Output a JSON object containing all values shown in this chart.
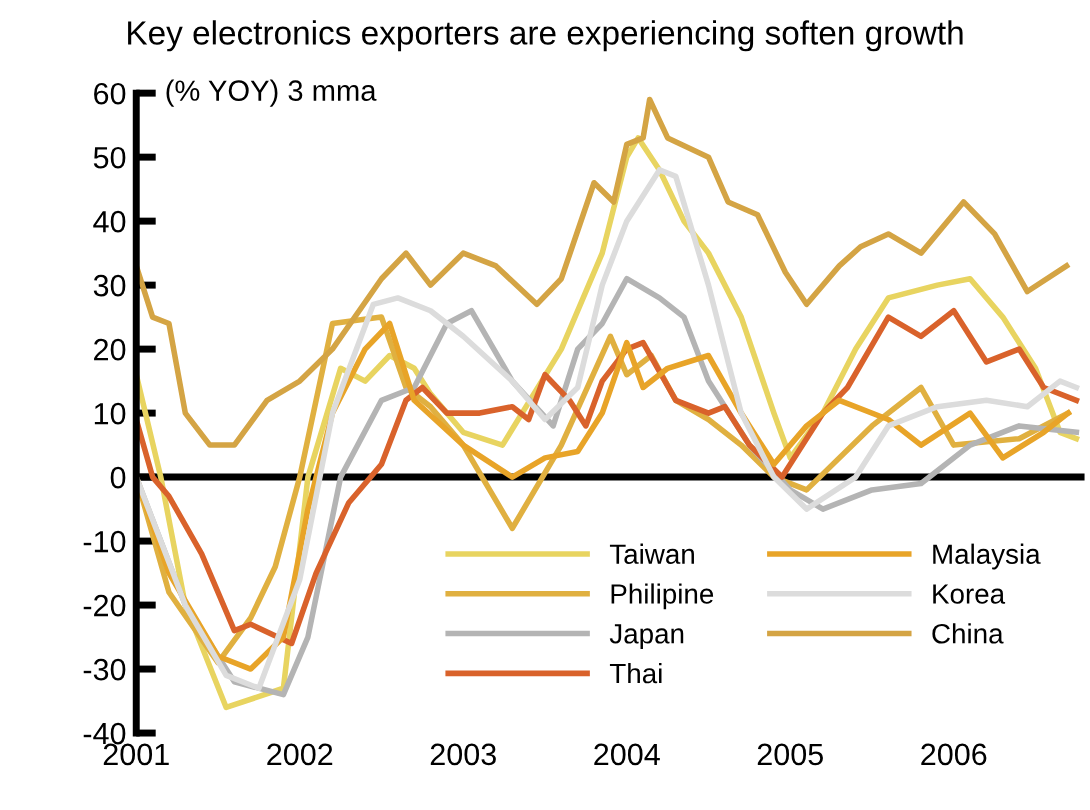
{
  "chart_data": {
    "type": "line",
    "title": "Key electronics exporters are experiencing soften growth",
    "ylabel": "(% YOY) 3 mma",
    "xlim": [
      2001,
      2006.8
    ],
    "xticks": [
      2001,
      2002,
      2003,
      2004,
      2005,
      2006
    ],
    "ylim": [
      -40,
      60
    ],
    "yticks": [
      -40,
      -30,
      -20,
      -10,
      0,
      10,
      20,
      30,
      40,
      50,
      60
    ],
    "grid": false,
    "legend": "bottom right",
    "marker": "none",
    "line_style": "solid",
    "ref_lines": [
      {
        "axis": "y",
        "value": 0,
        "color": "#000000"
      }
    ],
    "series": [
      {
        "name": "Taiwan",
        "color": "#e8d460",
        "x": [
          2001.0,
          2001.15,
          2001.3,
          2001.55,
          2001.9,
          2002.05,
          2002.25,
          2002.4,
          2002.55,
          2002.7,
          2002.8,
          2003.0,
          2003.24,
          2003.6,
          2003.85,
          2004.0,
          2004.07,
          2004.2,
          2004.35,
          2004.5,
          2004.7,
          2004.9,
          2005.0,
          2005.2,
          2005.4,
          2005.6,
          2005.9,
          2006.1,
          2006.3,
          2006.5,
          2006.65,
          2006.75
        ],
        "values": [
          16,
          0,
          -20,
          -36,
          -33,
          0,
          17,
          15,
          19,
          17,
          13,
          7,
          5,
          20,
          35,
          50,
          53,
          48,
          40,
          35,
          25,
          10,
          3,
          10,
          20,
          28,
          30,
          31,
          25,
          17,
          7,
          6
        ]
      },
      {
        "name": "Philipine",
        "color": "#e0b040",
        "x": [
          2001.0,
          2001.2,
          2001.5,
          2001.7,
          2001.85,
          2002.0,
          2002.2,
          2002.5,
          2002.65,
          2002.8,
          2003.0,
          2003.3,
          2003.6,
          2003.9,
          2004.0,
          2004.15,
          2004.3,
          2004.5,
          2004.7,
          2004.9,
          2005.1,
          2005.5,
          2005.8,
          2006.0,
          2006.4,
          2006.7
        ],
        "values": [
          0,
          -18,
          -29,
          -22,
          -14,
          0,
          24,
          25,
          14,
          11,
          5,
          -8,
          5,
          22,
          16,
          19,
          12,
          9,
          5,
          0,
          -2,
          8,
          14,
          5,
          6,
          10
        ]
      },
      {
        "name": "Japan",
        "color": "#b4b4b4",
        "x": [
          2001.0,
          2001.3,
          2001.6,
          2001.9,
          2002.05,
          2002.25,
          2002.5,
          2002.7,
          2002.9,
          2003.05,
          2003.3,
          2003.55,
          2003.7,
          2003.85,
          2004.0,
          2004.2,
          2004.35,
          2004.5,
          2004.75,
          2005.0,
          2005.2,
          2005.5,
          2005.8,
          2006.1,
          2006.4,
          2006.75
        ],
        "values": [
          0,
          -20,
          -32,
          -34,
          -25,
          0,
          12,
          14,
          24,
          26,
          15,
          8,
          20,
          24,
          31,
          28,
          25,
          15,
          5,
          -2,
          -5,
          -2,
          -1,
          5,
          8,
          7
        ]
      },
      {
        "name": "Thai",
        "color": "#d9622b",
        "x": [
          2001.0,
          2001.1,
          2001.2,
          2001.4,
          2001.6,
          2001.7,
          2001.95,
          2002.1,
          2002.3,
          2002.5,
          2002.65,
          2002.75,
          2002.9,
          2003.1,
          2003.3,
          2003.4,
          2003.5,
          2003.65,
          2003.75,
          2003.85,
          2004.0,
          2004.1,
          2004.3,
          2004.5,
          2004.6,
          2004.75,
          2004.95,
          2005.2,
          2005.35,
          2005.6,
          2005.8,
          2006.0,
          2006.2,
          2006.4,
          2006.55,
          2006.75
        ],
        "values": [
          9,
          0,
          -3,
          -12,
          -24,
          -23,
          -26,
          -15,
          -4,
          2,
          12,
          14,
          10,
          10,
          11,
          9,
          16,
          12,
          8,
          15,
          20,
          21,
          12,
          10,
          11,
          5,
          0,
          10,
          14,
          25,
          22,
          26,
          18,
          20,
          14,
          12
        ]
      },
      {
        "name": "Malaysia",
        "color": "#e8a428",
        "x": [
          2001.0,
          2001.2,
          2001.5,
          2001.7,
          2001.9,
          2002.05,
          2002.2,
          2002.4,
          2002.55,
          2002.7,
          2003.0,
          2003.3,
          2003.5,
          2003.7,
          2003.85,
          2004.0,
          2004.1,
          2004.25,
          2004.5,
          2004.7,
          2004.9,
          2005.1,
          2005.3,
          2005.6,
          2005.8,
          2006.1,
          2006.3,
          2006.55,
          2006.7
        ],
        "values": [
          0,
          -15,
          -28,
          -30,
          -25,
          -5,
          10,
          20,
          24,
          12,
          5,
          0,
          3,
          4,
          10,
          21,
          14,
          17,
          19,
          10,
          2,
          8,
          12,
          9,
          5,
          10,
          3,
          7,
          10
        ]
      },
      {
        "name": "Korea",
        "color": "#dcdcdc",
        "x": [
          2001.0,
          2001.3,
          2001.55,
          2001.75,
          2002.0,
          2002.2,
          2002.45,
          2002.6,
          2002.8,
          2003.0,
          2003.3,
          2003.5,
          2003.7,
          2003.85,
          2004.0,
          2004.2,
          2004.3,
          2004.5,
          2004.7,
          2004.9,
          2005.1,
          2005.4,
          2005.6,
          2005.9,
          2006.2,
          2006.45,
          2006.65,
          2006.75
        ],
        "values": [
          0,
          -20,
          -31,
          -33,
          -16,
          10,
          27,
          28,
          26,
          22,
          15,
          9,
          14,
          30,
          40,
          48,
          47,
          30,
          10,
          0,
          -5,
          0,
          8,
          11,
          12,
          11,
          15,
          14
        ]
      },
      {
        "name": "China",
        "color": "#d4a444",
        "x": [
          2001.0,
          2001.1,
          2001.2,
          2001.3,
          2001.45,
          2001.6,
          2001.8,
          2002.0,
          2002.2,
          2002.5,
          2002.65,
          2002.8,
          2003.0,
          2003.2,
          2003.45,
          2003.6,
          2003.8,
          2003.92,
          2004.0,
          2004.1,
          2004.14,
          2004.25,
          2004.5,
          2004.62,
          2004.8,
          2004.97,
          2005.1,
          2005.3,
          2005.43,
          2005.6,
          2005.8,
          2006.06,
          2006.25,
          2006.45,
          2006.69
        ],
        "values": [
          33,
          25,
          24,
          10,
          5,
          5,
          12,
          15,
          20,
          31,
          35,
          30,
          35,
          33,
          27,
          31,
          46,
          43,
          52,
          53,
          59,
          53,
          50,
          43,
          41,
          32,
          27,
          33,
          36,
          38,
          35,
          43,
          38,
          29,
          33
        ]
      }
    ]
  }
}
